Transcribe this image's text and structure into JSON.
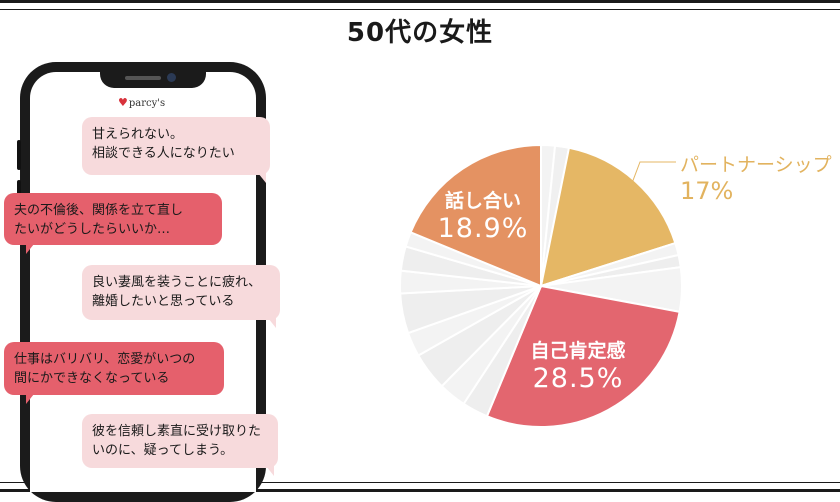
{
  "title": "50代の女性",
  "brand": "parcy's",
  "messages": [
    {
      "lines": [
        "甘えられない。",
        "相談できる人になりたい"
      ],
      "style": "pink"
    },
    {
      "lines": [
        "夫の不倫後、関係を立て直し",
        "たいがどうしたらいいか…"
      ],
      "style": "red"
    },
    {
      "lines": [
        "良い妻風を装うことに疲れ、",
        "離婚したいと思っている"
      ],
      "style": "pink"
    },
    {
      "lines": [
        "仕事はバリバリ、恋愛がいつの",
        "間にかできなくなっている"
      ],
      "style": "red"
    },
    {
      "lines": [
        "彼を信頼し素直に受け取りた",
        "いのに、疑ってしまう。"
      ],
      "style": "pink"
    }
  ],
  "chart_data": {
    "type": "pie",
    "title": "50代の女性",
    "start": "12 o'clock, clockwise",
    "slices": [
      {
        "label": "",
        "value": 1.6,
        "color": "#f3f3f3"
      },
      {
        "label": "",
        "value": 1.6,
        "color": "#f0f0f0"
      },
      {
        "label": "パートナーシップ",
        "value": 17,
        "display": "17%",
        "color": "#e5b765"
      },
      {
        "label": "",
        "value": 1.4,
        "color": "#f3f3f3"
      },
      {
        "label": "",
        "value": 1.4,
        "color": "#eeeeee"
      },
      {
        "label": "",
        "value": 5.1,
        "color": "#f3f3f3"
      },
      {
        "label": "自己肯定感",
        "value": 28.5,
        "display": "28.5%",
        "color": "#e3666f"
      },
      {
        "label": "",
        "value": 3.0,
        "color": "#eeeeee"
      },
      {
        "label": "",
        "value": 3.2,
        "color": "#f3f3f3"
      },
      {
        "label": "",
        "value": 4.4,
        "color": "#eeeeee"
      },
      {
        "label": "",
        "value": 2.8,
        "color": "#f3f3f3"
      },
      {
        "label": "",
        "value": 4.6,
        "color": "#eeeeee"
      },
      {
        "label": "",
        "value": 2.6,
        "color": "#f3f3f3"
      },
      {
        "label": "",
        "value": 2.8,
        "color": "#eeeeee"
      },
      {
        "label": "",
        "value": 1.7,
        "color": "#f3f3f3"
      },
      {
        "label": "話し合い",
        "value": 18.9,
        "display": "18.9%",
        "color": "#e49262"
      }
    ],
    "labels": {
      "partnership": {
        "category": "パートナーシップ",
        "value": "17%"
      },
      "self_esteem": {
        "category": "自己肯定感",
        "value": "28.5%"
      },
      "talk": {
        "category": "話し合い",
        "value": "18.9%"
      }
    },
    "legend": "none",
    "leader_line_color": "#e5b765"
  }
}
